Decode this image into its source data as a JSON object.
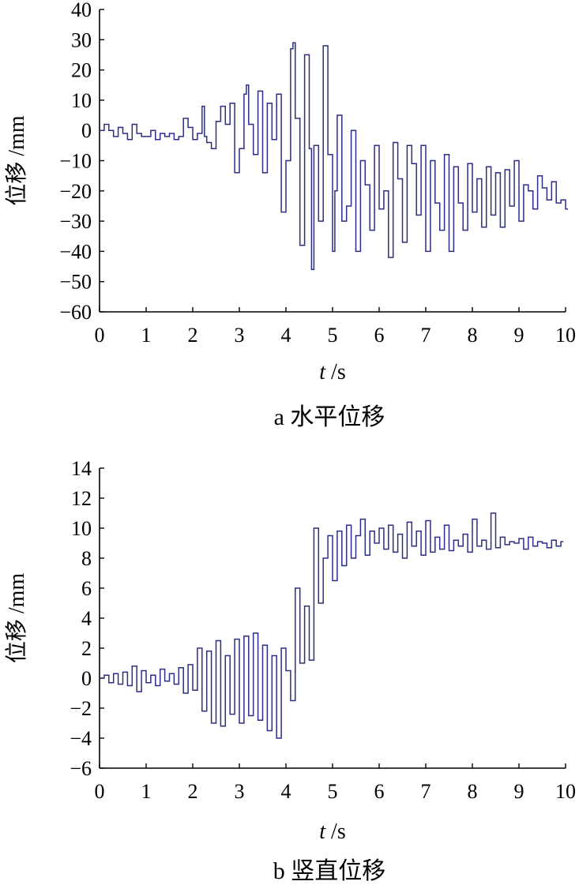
{
  "chart_data": [
    {
      "type": "line",
      "caption": "a 水平位移",
      "ylabel": "位移 /mm",
      "xlabel_italic": "t",
      "xlabel_unit": " /s",
      "xlim": [
        0,
        10
      ],
      "ylim": [
        -60,
        40
      ],
      "xticks": [
        0,
        1,
        2,
        3,
        4,
        5,
        6,
        7,
        8,
        9,
        10
      ],
      "yticks": [
        40,
        30,
        20,
        10,
        0,
        -10,
        -20,
        -30,
        -40,
        -50,
        -60
      ],
      "tick_labels_x": [
        "0",
        "1",
        "2",
        "3",
        "4",
        "5",
        "6",
        "7",
        "8",
        "9",
        "10"
      ],
      "tick_labels_y": [
        "40",
        "30",
        "20",
        "10",
        "0",
        "−10",
        "−20",
        "−30",
        "−40",
        "−50",
        "−60"
      ],
      "color": "#2b2e86",
      "x": [
        0.0,
        0.1,
        0.2,
        0.3,
        0.4,
        0.5,
        0.6,
        0.7,
        0.8,
        0.9,
        1.0,
        1.1,
        1.2,
        1.3,
        1.4,
        1.5,
        1.6,
        1.7,
        1.8,
        1.9,
        2.0,
        2.1,
        2.2,
        2.25,
        2.3,
        2.4,
        2.5,
        2.6,
        2.7,
        2.8,
        2.9,
        3.0,
        3.1,
        3.15,
        3.2,
        3.3,
        3.4,
        3.5,
        3.6,
        3.7,
        3.8,
        3.9,
        4.0,
        4.1,
        4.15,
        4.2,
        4.3,
        4.4,
        4.5,
        4.55,
        4.6,
        4.7,
        4.8,
        4.9,
        5.0,
        5.05,
        5.1,
        5.2,
        5.3,
        5.4,
        5.5,
        5.6,
        5.7,
        5.8,
        5.9,
        6.0,
        6.1,
        6.2,
        6.3,
        6.4,
        6.5,
        6.6,
        6.7,
        6.8,
        6.9,
        7.0,
        7.1,
        7.2,
        7.3,
        7.4,
        7.5,
        7.6,
        7.7,
        7.8,
        7.9,
        8.0,
        8.1,
        8.2,
        8.3,
        8.4,
        8.5,
        8.6,
        8.7,
        8.8,
        8.9,
        9.0,
        9.1,
        9.2,
        9.3,
        9.4,
        9.5,
        9.6,
        9.7,
        9.8,
        9.9,
        10.0
      ],
      "values": [
        0,
        2,
        0,
        -2,
        1,
        -1,
        -3,
        2,
        -1,
        -2,
        -2,
        0,
        -3,
        -1,
        -2,
        -1,
        -3,
        -2,
        4,
        1,
        -3,
        -1,
        8,
        -2,
        -4,
        -6,
        3,
        8,
        2,
        9,
        -14,
        -6,
        12,
        15,
        2,
        -8,
        13,
        -14,
        9,
        -3,
        12,
        -27,
        -10,
        27,
        29,
        4,
        -38,
        25,
        -6,
        -46,
        -5,
        -30,
        28,
        -8,
        -40,
        -20,
        5,
        -30,
        -25,
        0,
        -40,
        -10,
        -18,
        -33,
        -5,
        -26,
        -20,
        -42,
        -4,
        -16,
        -37,
        -5,
        -11,
        -28,
        -5,
        -40,
        -10,
        -24,
        -33,
        -8,
        -40,
        -12,
        -24,
        -33,
        -11,
        -27,
        -16,
        -32,
        -12,
        -28,
        -14,
        -32,
        -13,
        -25,
        -10,
        -30,
        -18,
        -20,
        -26,
        -15,
        -19,
        -23,
        -17,
        -24,
        -23,
        -26
      ]
    },
    {
      "type": "line",
      "caption": "b 竖直位移",
      "ylabel": "位移 /mm",
      "xlabel_italic": "t",
      "xlabel_unit": " /s",
      "xlim": [
        0,
        10
      ],
      "ylim": [
        -6,
        14
      ],
      "xticks": [
        0,
        1,
        2,
        3,
        4,
        5,
        6,
        7,
        8,
        9,
        10
      ],
      "yticks": [
        14,
        12,
        10,
        8,
        6,
        4,
        2,
        0,
        -2,
        -4,
        -6
      ],
      "tick_labels_x": [
        "0",
        "1",
        "2",
        "3",
        "4",
        "5",
        "6",
        "7",
        "8",
        "9",
        "10"
      ],
      "tick_labels_y": [
        "14",
        "12",
        "10",
        "8",
        "6",
        "4",
        "2",
        "0",
        "−2",
        "−4",
        "−6"
      ],
      "color": "#2b2e86",
      "x": [
        0.0,
        0.1,
        0.2,
        0.3,
        0.4,
        0.5,
        0.6,
        0.7,
        0.8,
        0.9,
        1.0,
        1.1,
        1.2,
        1.3,
        1.4,
        1.5,
        1.6,
        1.7,
        1.8,
        1.9,
        2.0,
        2.1,
        2.2,
        2.3,
        2.4,
        2.5,
        2.6,
        2.7,
        2.8,
        2.9,
        3.0,
        3.1,
        3.2,
        3.3,
        3.4,
        3.5,
        3.6,
        3.7,
        3.8,
        3.9,
        4.0,
        4.1,
        4.2,
        4.3,
        4.4,
        4.5,
        4.6,
        4.7,
        4.8,
        4.9,
        5.0,
        5.1,
        5.2,
        5.3,
        5.4,
        5.5,
        5.6,
        5.7,
        5.8,
        5.9,
        6.0,
        6.1,
        6.2,
        6.3,
        6.4,
        6.5,
        6.6,
        6.7,
        6.8,
        6.9,
        7.0,
        7.1,
        7.2,
        7.3,
        7.4,
        7.5,
        7.6,
        7.7,
        7.8,
        7.9,
        8.0,
        8.1,
        8.2,
        8.3,
        8.4,
        8.5,
        8.6,
        8.7,
        8.8,
        8.9,
        9.0,
        9.1,
        9.2,
        9.3,
        9.4,
        9.5,
        9.6,
        9.7,
        9.8,
        9.9
      ],
      "values": [
        0,
        0.2,
        -0.3,
        0.3,
        -0.4,
        0.4,
        -0.5,
        0.8,
        -0.9,
        0.5,
        -0.3,
        0.2,
        -0.5,
        0.6,
        -0.2,
        0.3,
        -0.4,
        0.7,
        -1.0,
        0.9,
        -0.8,
        2.0,
        -2.2,
        1.8,
        -3.0,
        2.5,
        -3.2,
        1.5,
        -2.4,
        2.6,
        -3.0,
        2.8,
        -2.5,
        3.0,
        -2.8,
        2.2,
        -3.5,
        1.5,
        -4.0,
        2.0,
        0.5,
        -1.5,
        6.0,
        1.0,
        4.8,
        1.2,
        10.0,
        5.0,
        8.0,
        9.5,
        6.5,
        9.8,
        7.5,
        10.2,
        8.0,
        9.5,
        10.6,
        8.2,
        9.8,
        9.0,
        10.0,
        8.6,
        10.2,
        8.4,
        9.6,
        8.0,
        10.4,
        8.8,
        9.8,
        8.2,
        10.5,
        8.4,
        9.4,
        8.6,
        10.2,
        8.5,
        9.2,
        8.8,
        9.6,
        8.4,
        10.6,
        8.8,
        9.2,
        8.6,
        11.0,
        8.7,
        9.4,
        8.9,
        9.1,
        9.0,
        9.3,
        8.6,
        9.4,
        8.8,
        9.1,
        9.0,
        8.7,
        9.2,
        8.8,
        9.1
      ]
    }
  ]
}
